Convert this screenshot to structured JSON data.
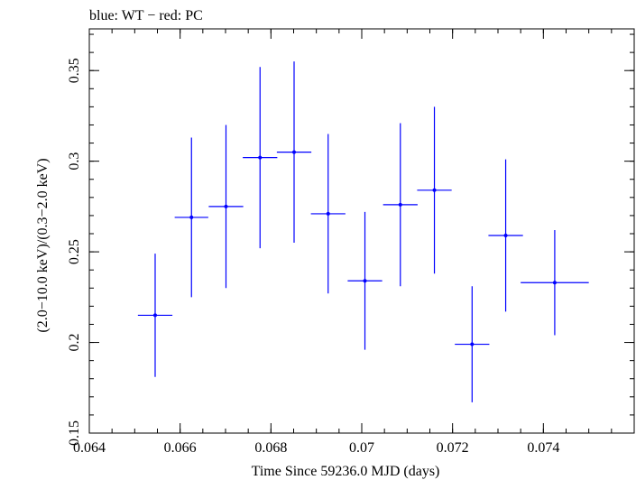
{
  "chart_data": {
    "type": "scatter",
    "title": "blue: WT − red: PC",
    "xlabel": "Time Since 59236.0 MJD (days)",
    "ylabel": "(2.0−10.0 keV)/(0.3−2.0 keV)",
    "xlim": [
      0.064,
      0.076
    ],
    "ylim": [
      0.15,
      0.373
    ],
    "x_ticks": [
      {
        "value": 0.064,
        "label": "0.064"
      },
      {
        "value": 0.066,
        "label": "0.066"
      },
      {
        "value": 0.068,
        "label": "0.068"
      },
      {
        "value": 0.07,
        "label": "0.07"
      },
      {
        "value": 0.072,
        "label": "0.072"
      },
      {
        "value": 0.074,
        "label": "0.074"
      }
    ],
    "y_ticks": [
      {
        "value": 0.15,
        "label": "0.15"
      },
      {
        "value": 0.2,
        "label": "0.2"
      },
      {
        "value": 0.25,
        "label": "0.25"
      },
      {
        "value": 0.3,
        "label": "0.3"
      },
      {
        "value": 0.35,
        "label": "0.35"
      }
    ],
    "x_minor_step": 0.0005,
    "y_minor_step": 0.01,
    "grid": false,
    "series": [
      {
        "color": "#0000ff",
        "points": [
          {
            "x": 0.06545,
            "xerr": 0.00038,
            "y": 0.215,
            "yerr_lo": 0.034,
            "yerr_hi": 0.034
          },
          {
            "x": 0.06625,
            "xerr": 0.00037,
            "y": 0.269,
            "yerr_lo": 0.044,
            "yerr_hi": 0.044
          },
          {
            "x": 0.06701,
            "xerr": 0.00038,
            "y": 0.275,
            "yerr_lo": 0.045,
            "yerr_hi": 0.045
          },
          {
            "x": 0.06776,
            "xerr": 0.00038,
            "y": 0.302,
            "yerr_lo": 0.05,
            "yerr_hi": 0.05
          },
          {
            "x": 0.06851,
            "xerr": 0.00038,
            "y": 0.305,
            "yerr_lo": 0.05,
            "yerr_hi": 0.05
          },
          {
            "x": 0.06926,
            "xerr": 0.00038,
            "y": 0.271,
            "yerr_lo": 0.044,
            "yerr_hi": 0.044
          },
          {
            "x": 0.07007,
            "xerr": 0.00038,
            "y": 0.234,
            "yerr_lo": 0.038,
            "yerr_hi": 0.038
          },
          {
            "x": 0.07085,
            "xerr": 0.00038,
            "y": 0.276,
            "yerr_lo": 0.045,
            "yerr_hi": 0.045
          },
          {
            "x": 0.0716,
            "xerr": 0.00038,
            "y": 0.284,
            "yerr_lo": 0.046,
            "yerr_hi": 0.046
          },
          {
            "x": 0.07243,
            "xerr": 0.00038,
            "y": 0.199,
            "yerr_lo": 0.032,
            "yerr_hi": 0.032
          },
          {
            "x": 0.07317,
            "xerr": 0.00038,
            "y": 0.259,
            "yerr_lo": 0.042,
            "yerr_hi": 0.042
          },
          {
            "x": 0.07425,
            "xerr": 0.00075,
            "y": 0.233,
            "yerr_lo": 0.029,
            "yerr_hi": 0.029
          }
        ]
      }
    ]
  }
}
